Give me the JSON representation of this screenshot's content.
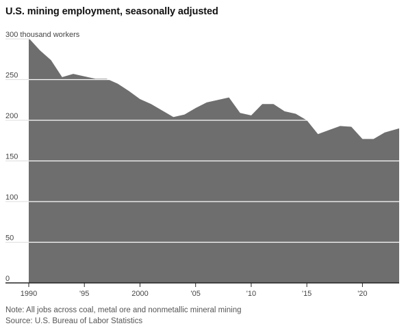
{
  "title": "U.S. mining employment, seasonally adjusted",
  "note": "Note: All jobs across coal, metal ore and nonmetallic mineral mining",
  "source": "Source: U.S. Bureau of Labor Statistics",
  "colors": {
    "area": "#6e6e6e",
    "grid": "#ffffff",
    "baseline": "#222222",
    "text": "#444444"
  },
  "chart_data": {
    "type": "area",
    "title": "U.S. mining employment, seasonally adjusted",
    "ylabel": "",
    "xlabel": "",
    "xlim": [
      1990,
      2023.3
    ],
    "ylim": [
      0,
      300
    ],
    "grid": true,
    "x": [
      1990,
      1991,
      1992,
      1993,
      1994,
      1995,
      1996,
      1997,
      1998,
      1999,
      2000,
      2001,
      2002,
      2003,
      2004,
      2005,
      2006,
      2007,
      2008,
      2009,
      2010,
      2011,
      2012,
      2013,
      2014,
      2015,
      2016,
      2017,
      2018,
      2019,
      2020,
      2021,
      2022,
      2023.3
    ],
    "series": [
      {
        "values": [
          301,
          286,
          274,
          253,
          257,
          254,
          251,
          251,
          245,
          236,
          226,
          220,
          212,
          204,
          207,
          215,
          222,
          225,
          228,
          209,
          206,
          220,
          220,
          211,
          208,
          200,
          183,
          188,
          193,
          192,
          177,
          177,
          185,
          190
        ]
      }
    ],
    "x_ticks": [
      {
        "value": 1990,
        "label": "1990"
      },
      {
        "value": 1995,
        "label": "'95"
      },
      {
        "value": 2000,
        "label": "2000"
      },
      {
        "value": 2005,
        "label": "'05"
      },
      {
        "value": 2010,
        "label": "'10"
      },
      {
        "value": 2015,
        "label": "'15"
      },
      {
        "value": 2020,
        "label": "'20"
      }
    ],
    "y_ticks": [
      {
        "value": 300,
        "label": "300 thousand workers"
      },
      {
        "value": 250,
        "label": "250"
      },
      {
        "value": 200,
        "label": "200"
      },
      {
        "value": 150,
        "label": "150"
      },
      {
        "value": 100,
        "label": "100"
      },
      {
        "value": 50,
        "label": "50"
      },
      {
        "value": 0,
        "label": "0"
      }
    ]
  }
}
